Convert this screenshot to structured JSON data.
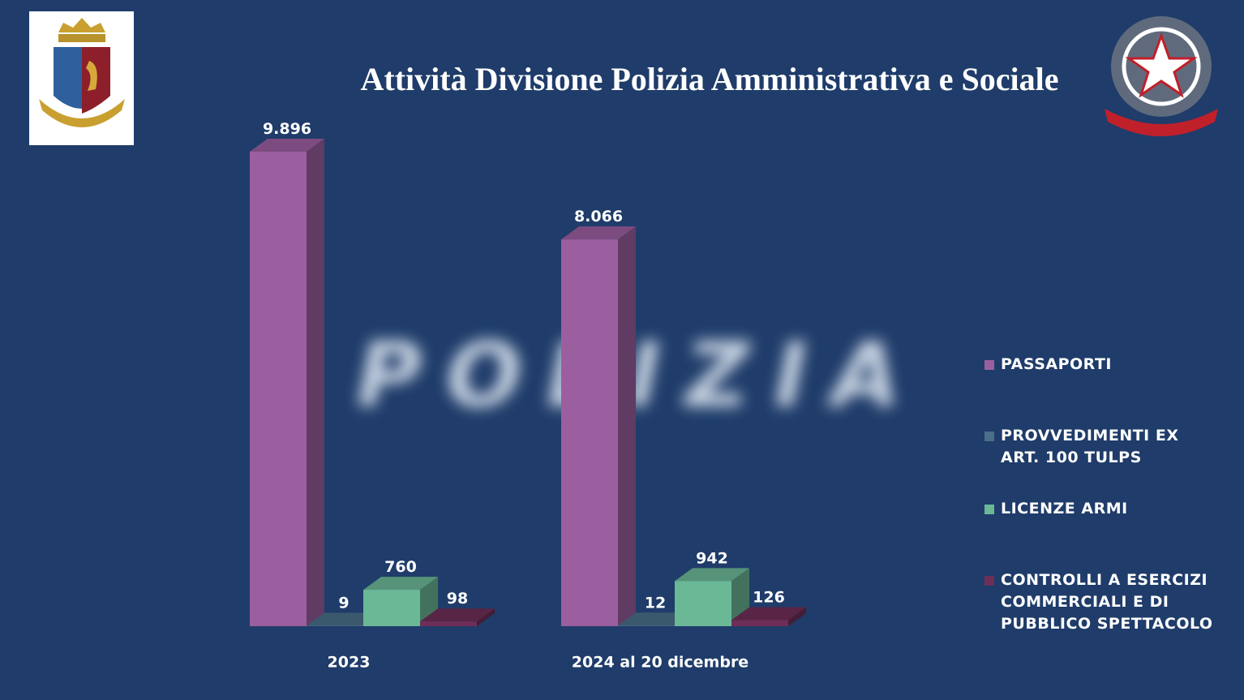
{
  "chart_data": {
    "type": "bar3d",
    "title": "Attività Divisione Polizia Amministrativa e Sociale",
    "watermark": "POLIZIA",
    "categories": [
      "2023",
      "2024 al 20 dicembre"
    ],
    "series": [
      {
        "name": "PASSAPORTI",
        "color": "#9b5fa0",
        "values": [
          9896,
          8066
        ],
        "value_labels": [
          "9.896",
          "8.066"
        ]
      },
      {
        "name": "PROVVEDIMENTI EX ART. 100 TULPS",
        "color": "#4a6f88",
        "values": [
          9,
          12
        ]
      },
      {
        "name": "LICENZE ARMI",
        "color": "#6bb897",
        "values": [
          760,
          942
        ]
      },
      {
        "name": "CONTROLLI A ESERCIZI COMMERCIALI E DI PUBBLICO SPETTACOLO",
        "color": "#6e2e58",
        "values": [
          98,
          126
        ]
      }
    ],
    "legend": "right"
  }
}
